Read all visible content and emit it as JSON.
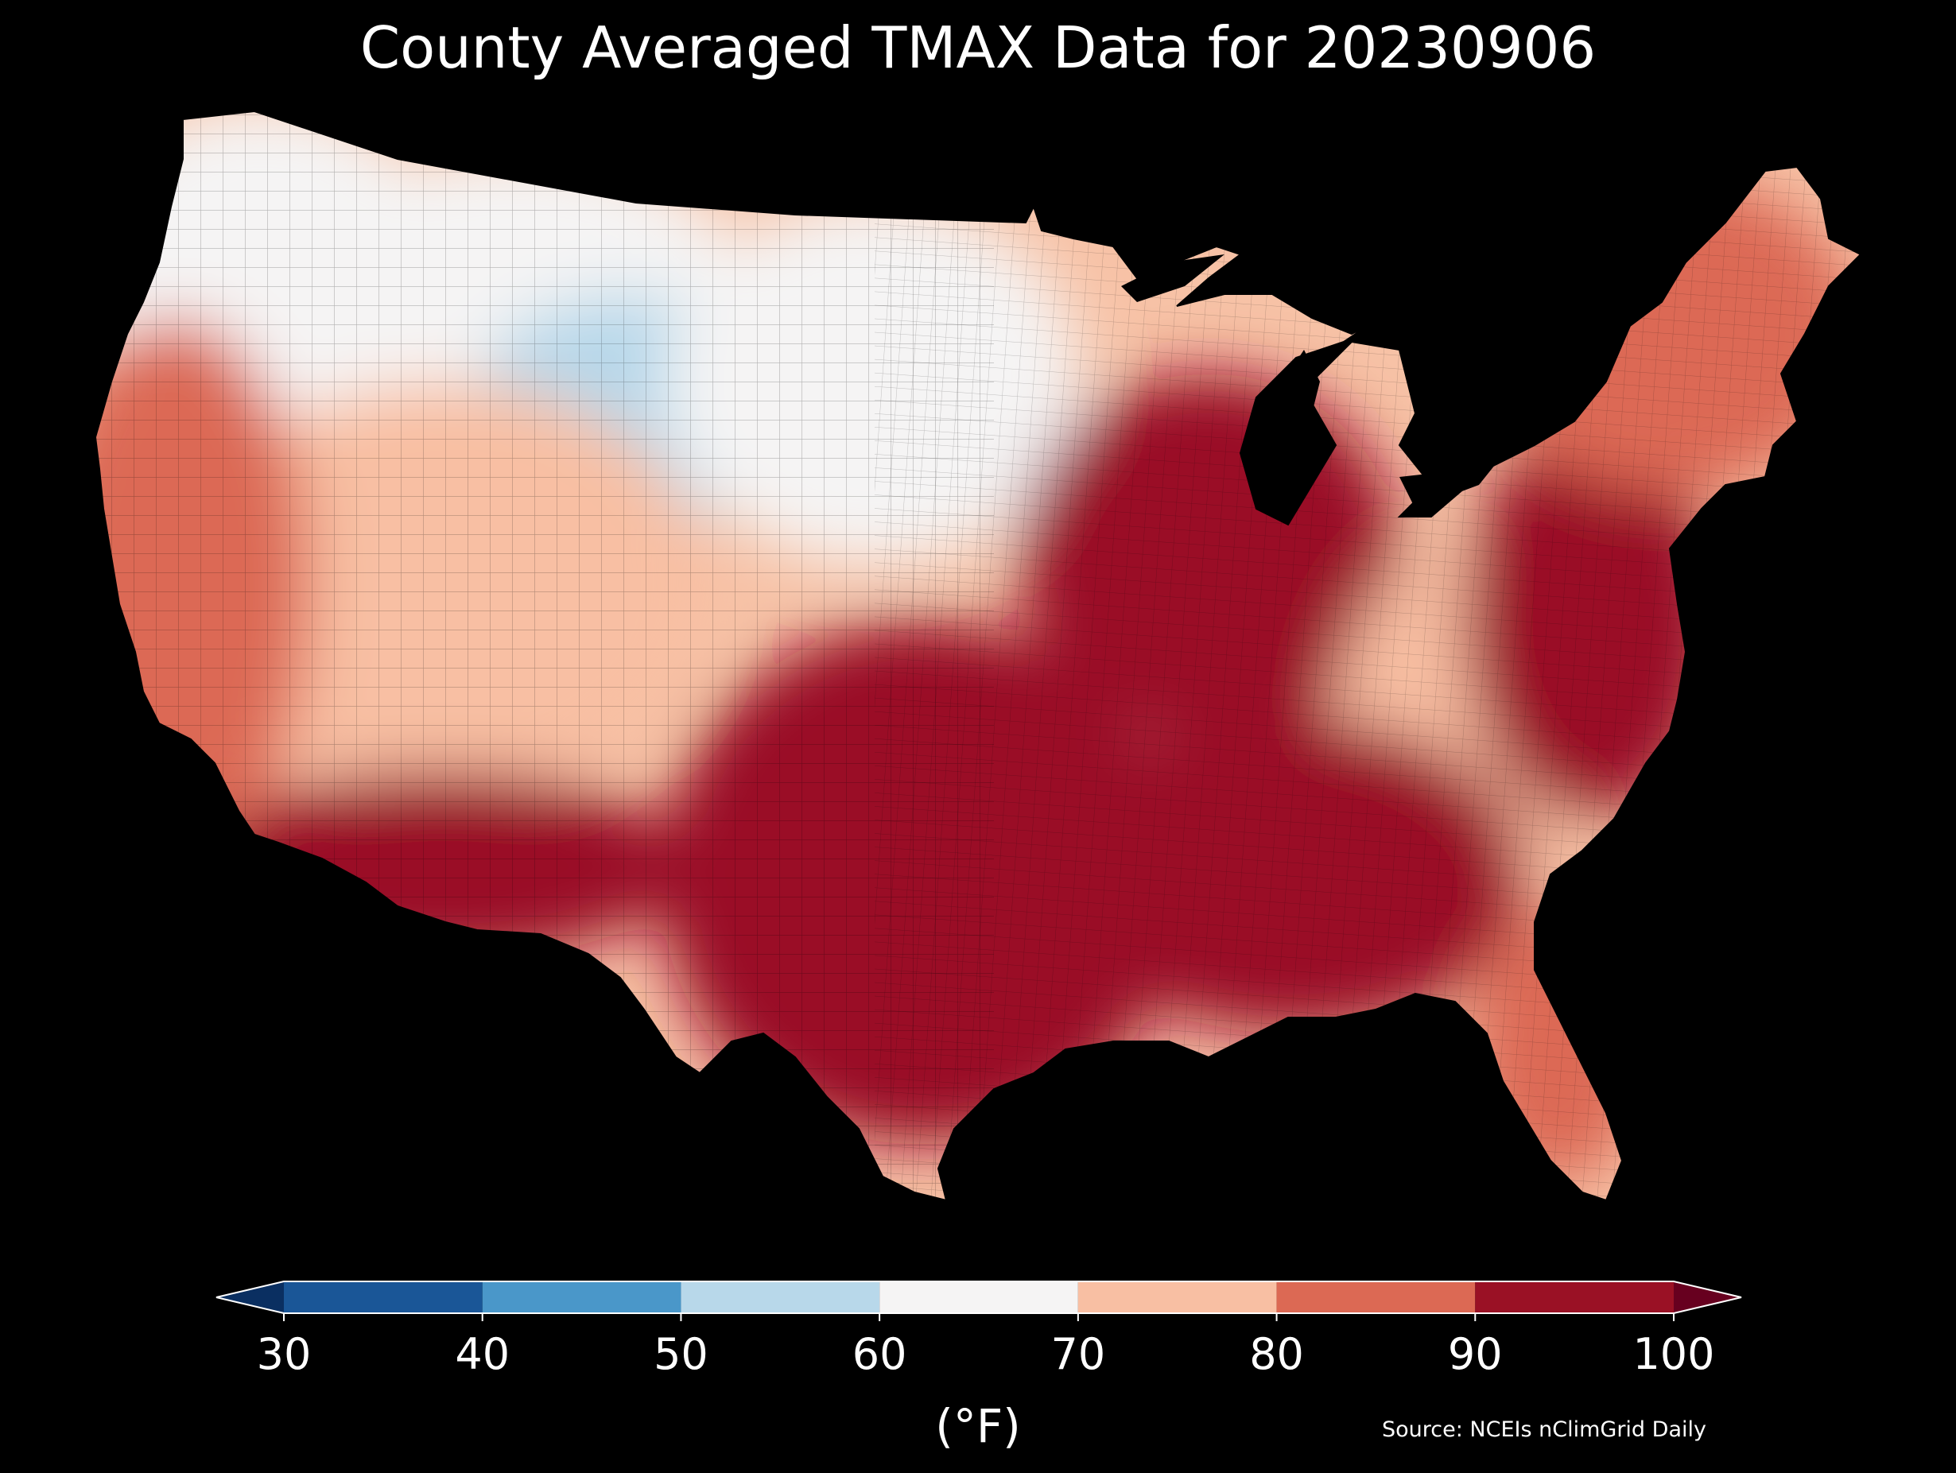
{
  "title": "County Averaged TMAX Data for 20230906",
  "colorbar": {
    "label": "(°F)",
    "ticks": [
      "30",
      "40",
      "50",
      "60",
      "70",
      "80",
      "90",
      "100"
    ],
    "bins": [
      {
        "from": 30,
        "to": 40,
        "color": "#1a5697"
      },
      {
        "from": 40,
        "to": 50,
        "color": "#4a97c9"
      },
      {
        "from": 50,
        "to": 60,
        "color": "#b8d8ea"
      },
      {
        "from": 60,
        "to": 70,
        "color": "#f5f4f4"
      },
      {
        "from": 70,
        "to": 80,
        "color": "#f8bfa3"
      },
      {
        "from": 80,
        "to": 90,
        "color": "#dc6954"
      },
      {
        "from": 90,
        "to": 100,
        "color": "#9a1125"
      }
    ],
    "under_color": "#0a2f61",
    "over_color": "#67001f"
  },
  "source": "Source: NCEIs nClimGrid Daily",
  "map": {
    "regions": [
      {
        "name": "pacific-northwest",
        "value": 64
      },
      {
        "name": "northern-rockies",
        "value": 66
      },
      {
        "name": "wyoming",
        "value": 55
      },
      {
        "name": "northern-plains",
        "value": 67
      },
      {
        "name": "great-basin",
        "value": 75
      },
      {
        "name": "california",
        "value": 82
      },
      {
        "name": "southwest-desert",
        "value": 96
      },
      {
        "name": "southern-plains",
        "value": 98
      },
      {
        "name": "midwest",
        "value": 93
      },
      {
        "name": "appalachians",
        "value": 79
      },
      {
        "name": "southeast",
        "value": 92
      },
      {
        "name": "mid-atlantic",
        "value": 95
      },
      {
        "name": "northeast",
        "value": 87
      },
      {
        "name": "florida",
        "value": 88
      }
    ]
  }
}
